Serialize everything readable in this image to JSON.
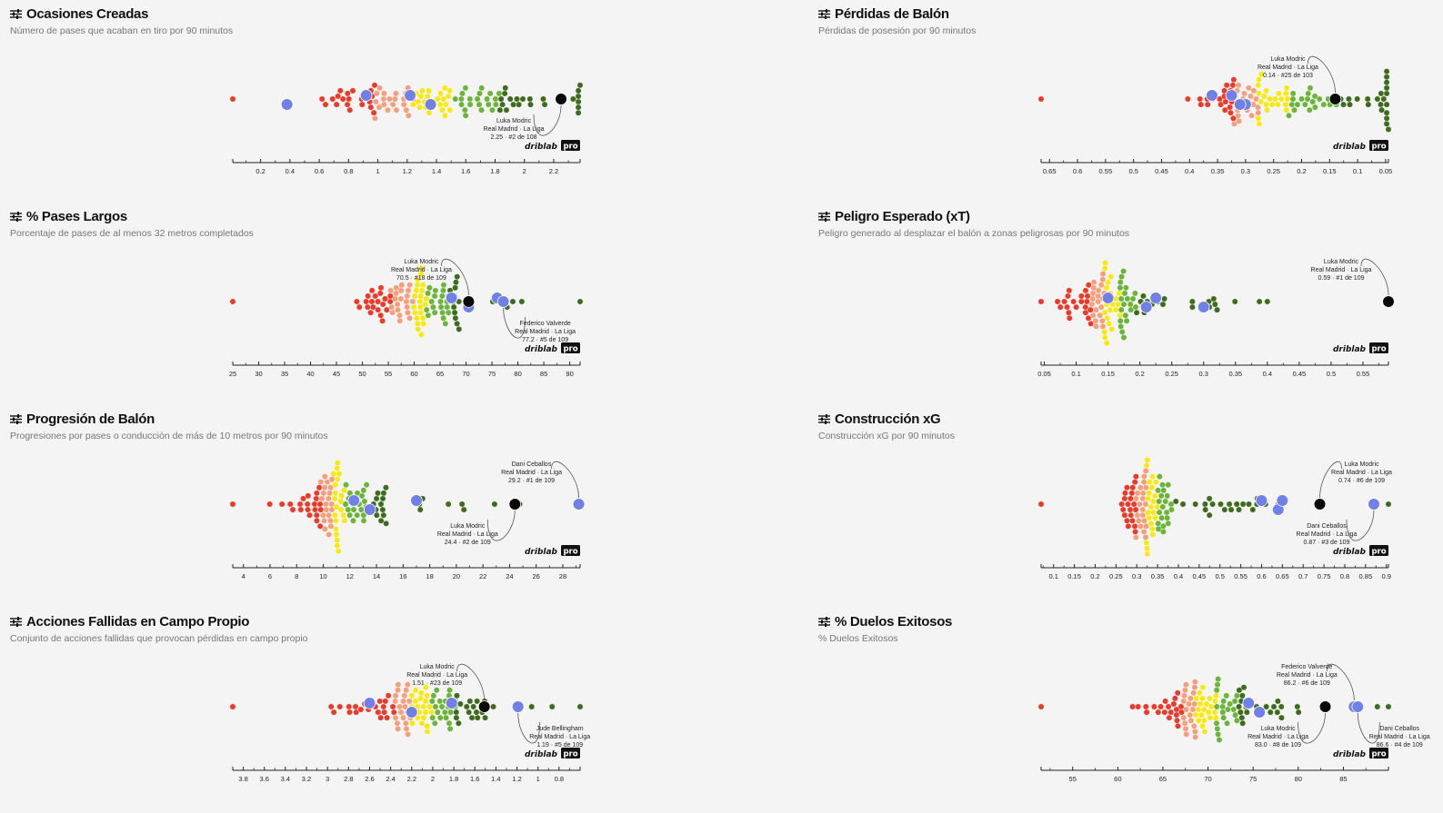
{
  "colors": {
    "red": "#ec3a2a",
    "salmon": "#f4a07e",
    "yellow": "#f7e81a",
    "lightgreen": "#6cb43c",
    "darkgreen": "#3e6b1d",
    "highlight": "#7180e6",
    "focus": "#0a0a0a"
  },
  "brand": {
    "name": "driblab",
    "pro": "pro"
  },
  "chart_data": [
    {
      "type": "scatter",
      "title": "Ocasiones Creadas",
      "subtitle": "Número de pases que acaban en tiro por 90 minutos",
      "xlim": [
        0.01,
        2.38
      ],
      "reversed": false,
      "ticks": [
        "0.2",
        "0.4",
        "0.6",
        "0.8",
        "1",
        "1.2",
        "1.4",
        "1.6",
        "1.8",
        "2",
        "2.2"
      ],
      "seed": 3,
      "distribution": [
        0.5,
        0.3,
        0.88,
        0.45
      ],
      "highlights": [
        {
          "value": 0.92
        },
        {
          "value": 0.38
        },
        {
          "value": 1.22
        },
        {
          "value": 1.36
        }
      ],
      "annotations": [
        {
          "player": "Luka Modric",
          "team": "Real Madrid · La Liga",
          "stat": "2.25 · #2 de 108",
          "value": 2.25,
          "focus": true,
          "pos": "below-left"
        }
      ]
    },
    {
      "type": "scatter",
      "title": "Pérdidas de Balón",
      "subtitle": "Pérdidas de posesión por 90 minutos",
      "xlim": [
        0.665,
        0.045
      ],
      "reversed": true,
      "ticks": [
        "0.65",
        "0.6",
        "0.55",
        "0.5",
        "0.45",
        "0.4",
        "0.35",
        "0.3",
        "0.25",
        "0.2",
        "0.15",
        "0.1",
        "0.05"
      ],
      "seed": 7,
      "distribution": [
        0.6,
        0.15,
        0.95,
        0.4
      ],
      "highlights": [
        {
          "value": 0.325
        },
        {
          "value": 0.3
        },
        {
          "value": 0.36
        },
        {
          "value": 0.31
        }
      ],
      "annotations": [
        {
          "player": "Luka Modric",
          "team": "Real Madrid · La Liga",
          "stat": "0.14 · #25 de 103",
          "value": 0.14,
          "focus": true,
          "pos": "above-left"
        }
      ]
    },
    {
      "type": "scatter",
      "title": "% Pases Largos",
      "subtitle": "Porcentaje de pases de al menos 32 metros completados",
      "xlim": [
        25,
        92
      ],
      "reversed": false,
      "ticks": [
        "25",
        "30",
        "35",
        "40",
        "45",
        "50",
        "55",
        "60",
        "65",
        "70",
        "75",
        "80",
        "85",
        "90"
      ],
      "seed": 11,
      "distribution": [
        0.52,
        0.22,
        0.25,
        0.3
      ],
      "highlights": [
        {
          "value": 67.2
        },
        {
          "value": 70.5
        },
        {
          "value": 76
        }
      ],
      "annotations": [
        {
          "player": "Luka Modric",
          "team": "Real Madrid · La Liga",
          "stat": "70.5 · #18 de 109",
          "value": 70.5,
          "focus": true,
          "pos": "above-left"
        },
        {
          "player": "Federico Valverde",
          "team": "Real Madrid · La Liga",
          "stat": "77.2 · #5 de 109",
          "value": 77.2,
          "focus": false,
          "pos": "below-right"
        }
      ]
    },
    {
      "type": "scatter",
      "title": "Peligro Esperado (xT)",
      "subtitle": "Peligro generado al desplazar el balón a zonas peligrosas por 90 minutos",
      "xlim": [
        0.045,
        0.59
      ],
      "reversed": false,
      "ticks": [
        "0.05",
        "0.1",
        "0.15",
        "0.2",
        "0.25",
        "0.3",
        "0.35",
        "0.4",
        "0.45",
        "0.5",
        "0.55"
      ],
      "seed": 17,
      "distribution": [
        0.2,
        0.14,
        0.55,
        0.3
      ],
      "highlights": [
        {
          "value": 0.15
        },
        {
          "value": 0.21
        },
        {
          "value": 0.225
        },
        {
          "value": 0.3
        }
      ],
      "annotations": [
        {
          "player": "Luka Modric",
          "team": "Real Madrid · La Liga",
          "stat": "0.59 · #1 de 109",
          "value": 0.59,
          "focus": true,
          "pos": "above-left"
        }
      ]
    },
    {
      "type": "scatter",
      "title": "Progresión de Balón",
      "subtitle": "Progresiones por pases o conducción de más de 10 metros por 90 minutos",
      "xlim": [
        3.2,
        29.3
      ],
      "reversed": false,
      "ticks": [
        "4",
        "6",
        "8",
        "10",
        "12",
        "14",
        "16",
        "18",
        "20",
        "22",
        "24",
        "26",
        "28"
      ],
      "seed": 23,
      "distribution": [
        0.3,
        0.18,
        0.5,
        0.3
      ],
      "highlights": [
        {
          "value": 12.3
        },
        {
          "value": 13.5
        },
        {
          "value": 17
        }
      ],
      "annotations": [
        {
          "player": "Dani Ceballos",
          "team": "Real Madrid · La Liga",
          "stat": "29.2 · #1 de 109",
          "value": 29.2,
          "focus": false,
          "pos": "above-left"
        },
        {
          "player": "Luka Modric",
          "team": "Real Madrid · La Liga",
          "stat": "24.4 · #2 de 109",
          "value": 24.4,
          "focus": true,
          "pos": "below-left"
        }
      ]
    },
    {
      "type": "scatter",
      "title": "Construcción xG",
      "subtitle": "Construcción xG por 90 minutos",
      "xlim": [
        0.07,
        0.905
      ],
      "reversed": false,
      "ticks": [
        "0.1",
        "0.15",
        "0.2",
        "0.25",
        "0.3",
        "0.35",
        "0.4",
        "0.45",
        "0.5",
        "0.55",
        "0.6",
        "0.65",
        "0.7",
        "0.75",
        "0.8",
        "0.85",
        "0.9"
      ],
      "seed": 29,
      "distribution": [
        0.3,
        0.1,
        0.5,
        0.3
      ],
      "highlights": [
        {
          "value": 0.6
        },
        {
          "value": 0.64
        },
        {
          "value": 0.65
        }
      ],
      "annotations": [
        {
          "player": "Luka Modric",
          "team": "Real Madrid · La Liga",
          "stat": "0.74 · #6 de 109",
          "value": 0.74,
          "focus": true,
          "pos": "above-right"
        },
        {
          "player": "Dani Ceballos",
          "team": "Real Madrid · La Liga",
          "stat": "0.87 · #3 de 109",
          "value": 0.87,
          "focus": false,
          "pos": "below-left"
        }
      ]
    },
    {
      "type": "scatter",
      "title": "Acciones Fallidas en Campo Propio",
      "subtitle": "Conjunto de acciones fallidas que provocan pérdidas en campo propio",
      "xlim": [
        3.9,
        0.6
      ],
      "reversed": true,
      "ticks": [
        "3.8",
        "3.6",
        "3.4",
        "3.2",
        "3",
        "2.8",
        "2.6",
        "2.4",
        "2.2",
        "2",
        "1.8",
        "1.6",
        "1.4",
        "1.2",
        "1",
        "0.8"
      ],
      "seed": 31,
      "distribution": [
        0.52,
        0.25,
        0.3,
        0.25
      ],
      "highlights": [
        {
          "value": 2.6
        },
        {
          "value": 2.2
        },
        {
          "value": 1.82
        }
      ],
      "annotations": [
        {
          "player": "Luka Modric",
          "team": "Real Madrid · La Liga",
          "stat": "1.51 · #23 de 109",
          "value": 1.51,
          "focus": true,
          "pos": "above-left"
        },
        {
          "player": "Jude Bellingham",
          "team": "Real Madrid · La Liga",
          "stat": "1.19 · #5 de 109",
          "value": 1.19,
          "focus": false,
          "pos": "below-right"
        }
      ]
    },
    {
      "type": "scatter",
      "title": "% Duelos Exitosos",
      "subtitle": "% Duelos Exitosos",
      "xlim": [
        51.5,
        90
      ],
      "reversed": false,
      "ticks": [
        "55",
        "60",
        "65",
        "70",
        "75",
        "80",
        "85"
      ],
      "seed": 37,
      "distribution": [
        0.48,
        0.22,
        0.25,
        0.28
      ],
      "highlights": [
        {
          "value": 74.5
        },
        {
          "value": 75.7
        }
      ],
      "annotations": [
        {
          "player": "Federico Valverde",
          "team": "Real Madrid · La Liga",
          "stat": "86.2 · #6 de 109",
          "value": 86.2,
          "focus": false,
          "pos": "above-left"
        },
        {
          "player": "Dani Ceballos",
          "team": "Real Madrid · La Liga",
          "stat": "86.6 · #4 de 109",
          "value": 86.6,
          "focus": false,
          "pos": "below-right"
        },
        {
          "player": "Luka Modric",
          "team": "Real Madrid · La Liga",
          "stat": "83.0 · #8 de 109",
          "value": 83.0,
          "focus": true,
          "pos": "below-left"
        }
      ]
    }
  ]
}
